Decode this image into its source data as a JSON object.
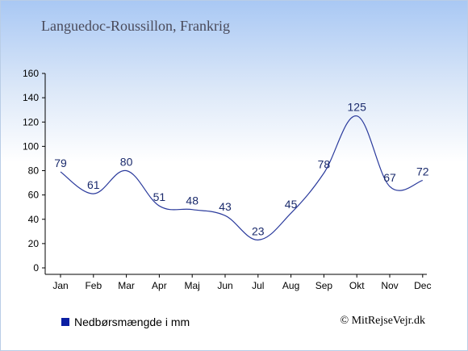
{
  "title": "Languedoc-Roussillon, Frankrig",
  "legend": {
    "label": "Nedbørsmængde i mm",
    "color": "#0b1fa3"
  },
  "credit": "© MitRejseVejr.dk",
  "chart_data": {
    "type": "line",
    "categories": [
      "Jan",
      "Feb",
      "Mar",
      "Apr",
      "Maj",
      "Jun",
      "Jul",
      "Aug",
      "Sep",
      "Okt",
      "Nov",
      "Dec"
    ],
    "series": [
      {
        "name": "Nedbørsmængde i mm",
        "values": [
          79,
          61,
          80,
          51,
          48,
          43,
          23,
          45,
          78,
          125,
          67,
          72
        ],
        "color": "#2a3a9c"
      }
    ],
    "ylim": [
      0,
      160
    ],
    "yticks": [
      0,
      20,
      40,
      60,
      80,
      100,
      120,
      140,
      160
    ],
    "xlabel": "",
    "ylabel": "",
    "grid": false,
    "legend_position": "bottom-left"
  }
}
